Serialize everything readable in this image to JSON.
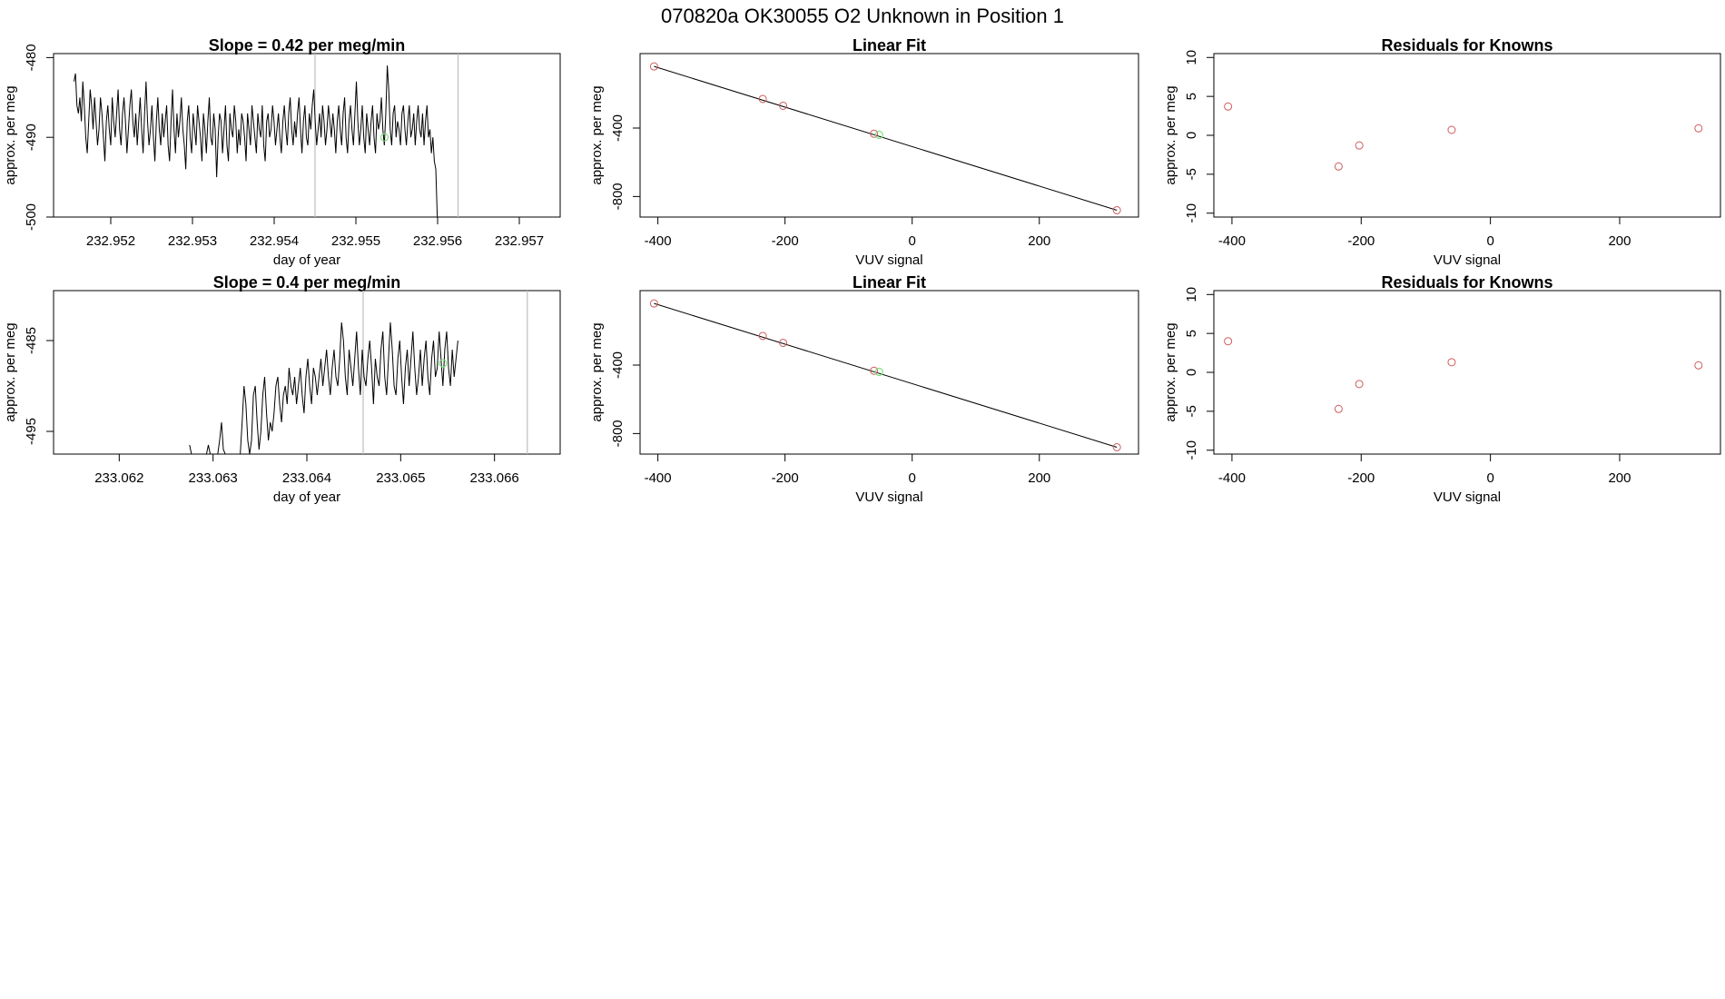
{
  "figure": {
    "title": "070820a      OK30055   O2 Unknown in Position  1"
  },
  "colors": {
    "line": "#000000",
    "known_points": "#cd5c5c",
    "unknown_points": "#7fe07f",
    "frame": "#000000",
    "vline": "#bebebe"
  },
  "chart_data": [
    {
      "id": "ts1",
      "type": "line",
      "title": "Slope =  0.42  per meg/min",
      "xlabel": "day of year",
      "ylabel": "approx. per meg",
      "xlim": [
        232.9513,
        232.9575
      ],
      "ylim": [
        -500,
        -479.5
      ],
      "xticks": [
        232.952,
        232.953,
        232.954,
        232.955,
        232.956,
        232.957
      ],
      "xtick_labels": [
        "232.952",
        "232.953",
        "232.954",
        "232.955",
        "232.956",
        "232.957"
      ],
      "yticks": [
        -500,
        -490,
        -480
      ],
      "ytick_labels": [
        "-500",
        "-490",
        "-480"
      ],
      "vlines": [
        232.9545,
        232.95625
      ],
      "series": [
        {
          "x_start": 232.95155,
          "x_step": 1.8e-05,
          "values": [
            -483,
            -482,
            -486,
            -487,
            -485,
            -488,
            -483,
            -486,
            -490,
            -492,
            -488,
            -484,
            -486,
            -489,
            -485,
            -488,
            -491,
            -489,
            -485,
            -487,
            -490,
            -493,
            -488,
            -486,
            -489,
            -491,
            -485,
            -488,
            -490,
            -487,
            -484,
            -489,
            -491,
            -487,
            -485,
            -488,
            -492,
            -489,
            -486,
            -484,
            -488,
            -490,
            -487,
            -491,
            -488,
            -485,
            -489,
            -492,
            -487,
            -483,
            -488,
            -491,
            -489,
            -486,
            -490,
            -493,
            -488,
            -485,
            -489,
            -491,
            -487,
            -490,
            -488,
            -486,
            -491,
            -493,
            -488,
            -484,
            -489,
            -492,
            -487,
            -490,
            -488,
            -485,
            -489,
            -491,
            -494,
            -488,
            -486,
            -490,
            -492,
            -487,
            -489,
            -491,
            -486,
            -488,
            -490,
            -493,
            -487,
            -489,
            -492,
            -488,
            -485,
            -490,
            -491,
            -487,
            -489,
            -495,
            -490,
            -487,
            -488,
            -492,
            -489,
            -486,
            -491,
            -493,
            -487,
            -489,
            -490,
            -486,
            -488,
            -492,
            -489,
            -491,
            -487,
            -488,
            -490,
            -493,
            -487,
            -489,
            -491,
            -486,
            -488,
            -490,
            -492,
            -487,
            -489,
            -490,
            -486,
            -491,
            -493,
            -488,
            -487,
            -490,
            -489,
            -486,
            -488,
            -491,
            -489,
            -487,
            -490,
            -492,
            -488,
            -486,
            -489,
            -491,
            -487,
            -485,
            -489,
            -491,
            -488,
            -490,
            -487,
            -485,
            -489,
            -492,
            -488,
            -486,
            -490,
            -491,
            -487,
            -489,
            -486,
            -484,
            -488,
            -491,
            -489,
            -487,
            -490,
            -486,
            -488,
            -491,
            -489,
            -486,
            -488,
            -490,
            -487,
            -489,
            -492,
            -488,
            -486,
            -489,
            -491,
            -487,
            -485,
            -490,
            -492,
            -488,
            -486,
            -489,
            -491,
            -487,
            -483,
            -488,
            -491,
            -489,
            -486,
            -490,
            -492,
            -487,
            -489,
            -491,
            -488,
            -486,
            -490,
            -492,
            -487,
            -489,
            -488,
            -485,
            -489,
            -491,
            -487,
            -481,
            -484,
            -489,
            -491,
            -487,
            -486,
            -490,
            -488,
            -489,
            -491,
            -487,
            -486,
            -489,
            -491,
            -488,
            -486,
            -490,
            -489,
            -487,
            -491,
            -488,
            -486,
            -489,
            -490,
            -487,
            -491,
            -488,
            -486,
            -490,
            -489,
            -492,
            -490,
            -493,
            -494,
            -500
          ]
        }
      ],
      "unknown_points": [
        {
          "x": 232.95535,
          "y": -490
        }
      ]
    },
    {
      "id": "fit1",
      "type": "scatter",
      "title": "Linear Fit",
      "xlabel": "VUV signal",
      "ylabel": "approx. per meg",
      "xlim": [
        -428,
        356
      ],
      "ylim": [
        -920,
        35
      ],
      "xticks": [
        -400,
        -200,
        0,
        200
      ],
      "xtick_labels": [
        "-400",
        "-200",
        "0",
        "200"
      ],
      "yticks": [
        -800,
        -400
      ],
      "ytick_labels": [
        "-800",
        "-400"
      ],
      "fit_line": {
        "x": [
          -406,
          322
        ],
        "y": [
          -40,
          -880
        ]
      },
      "known_points": [
        {
          "x": -406,
          "y": -40
        },
        {
          "x": -235,
          "y": -230
        },
        {
          "x": -203,
          "y": -270
        },
        {
          "x": -60,
          "y": -433
        },
        {
          "x": 322,
          "y": -880
        }
      ],
      "unknown_points": [
        {
          "x": -52,
          "y": -440
        }
      ]
    },
    {
      "id": "res1",
      "type": "scatter",
      "title": "Residuals for Knowns",
      "xlabel": "VUV signal",
      "ylabel": "approx. per meg",
      "xlim": [
        -428,
        356
      ],
      "ylim": [
        -10.5,
        10.5
      ],
      "xticks": [
        -400,
        -200,
        0,
        200
      ],
      "xtick_labels": [
        "-400",
        "-200",
        "0",
        "200"
      ],
      "yticks": [
        -10,
        -5,
        0,
        5,
        10
      ],
      "ytick_labels": [
        "-10",
        "-5",
        "0",
        "5",
        "10"
      ],
      "known_points": [
        {
          "x": -406,
          "y": 3.7
        },
        {
          "x": -235,
          "y": -4.0
        },
        {
          "x": -203,
          "y": -1.3
        },
        {
          "x": -60,
          "y": 0.7
        },
        {
          "x": 322,
          "y": 0.9
        }
      ]
    },
    {
      "id": "ts2",
      "type": "line",
      "title": "Slope =  0.4  per meg/min",
      "xlabel": "day of year",
      "ylabel": "approx. per meg",
      "xlim": [
        233.0613,
        233.0667
      ],
      "ylim": [
        -497.5,
        -479.5
      ],
      "xticks": [
        233.062,
        233.063,
        233.064,
        233.065,
        233.066
      ],
      "xtick_labels": [
        "233.062",
        "233.063",
        "233.064",
        "233.065",
        "233.066"
      ],
      "yticks": [
        -495,
        -485
      ],
      "ytick_labels": [
        "-495",
        "-485"
      ],
      "vlines": [
        233.0646,
        233.06635
      ],
      "series": [
        {
          "x_start": 233.06275,
          "x_step": 2e-05,
          "values": [
            -496.5,
            -497.5,
            -497.5,
            -497.5,
            -497.5,
            -497.5,
            -497.5,
            -497.5,
            -497.5,
            -497.5,
            -496.5,
            -497.5,
            -497.5,
            -497.5,
            -497.5,
            -497.5,
            -496,
            -494,
            -497,
            -497.5,
            -497.5,
            -497.5,
            -497.5,
            -497.5,
            -497.5,
            -497.5,
            -497.5,
            -497.5,
            -494,
            -490,
            -492,
            -496,
            -497.5,
            -496,
            -491,
            -490,
            -494,
            -497,
            -495,
            -491,
            -489,
            -493,
            -496,
            -494,
            -495,
            -493,
            -490,
            -489,
            -492,
            -494,
            -491,
            -490,
            -492,
            -488,
            -490,
            -491,
            -489,
            -492,
            -490,
            -488,
            -491,
            -493,
            -489,
            -487,
            -490,
            -492,
            -488,
            -489,
            -491,
            -489,
            -487,
            -490,
            -488,
            -486,
            -489,
            -491,
            -488,
            -486,
            -489,
            -490,
            -487,
            -483,
            -485,
            -489,
            -491,
            -486,
            -488,
            -490,
            -487,
            -484,
            -488,
            -491,
            -486,
            -489,
            -490,
            -487,
            -485,
            -488,
            -492,
            -487,
            -489,
            -490,
            -486,
            -484,
            -489,
            -491,
            -487,
            -483,
            -486,
            -490,
            -491,
            -487,
            -485,
            -489,
            -492,
            -488,
            -486,
            -490,
            -487,
            -484,
            -488,
            -491,
            -489,
            -486,
            -490,
            -487,
            -485,
            -489,
            -491,
            -487,
            -485,
            -489,
            -488,
            -484,
            -487,
            -490,
            -486,
            -484,
            -488,
            -490,
            -486,
            -489,
            -487,
            -485
          ]
        }
      ],
      "unknown_points": [
        {
          "x": 233.06545,
          "y": -487.5
        }
      ]
    },
    {
      "id": "fit2",
      "type": "scatter",
      "title": "Linear Fit",
      "xlabel": "VUV signal",
      "ylabel": "approx. per meg",
      "xlim": [
        -428,
        356
      ],
      "ylim": [
        -920,
        35
      ],
      "xticks": [
        -400,
        -200,
        0,
        200
      ],
      "xtick_labels": [
        "-400",
        "-200",
        "0",
        "200"
      ],
      "yticks": [
        -800,
        -400
      ],
      "ytick_labels": [
        "-800",
        "-400"
      ],
      "fit_line": {
        "x": [
          -406,
          322
        ],
        "y": [
          -40,
          -880
        ]
      },
      "known_points": [
        {
          "x": -406,
          "y": -40
        },
        {
          "x": -235,
          "y": -230
        },
        {
          "x": -203,
          "y": -270
        },
        {
          "x": -60,
          "y": -433
        },
        {
          "x": 322,
          "y": -880
        }
      ],
      "unknown_points": [
        {
          "x": -52,
          "y": -440
        }
      ]
    },
    {
      "id": "res2",
      "type": "scatter",
      "title": "Residuals for Knowns",
      "xlabel": "VUV signal",
      "ylabel": "approx. per meg",
      "xlim": [
        -428,
        356
      ],
      "ylim": [
        -10.5,
        10.5
      ],
      "xticks": [
        -400,
        -200,
        0,
        200
      ],
      "xtick_labels": [
        "-400",
        "-200",
        "0",
        "200"
      ],
      "yticks": [
        -10,
        -5,
        0,
        5,
        10
      ],
      "ytick_labels": [
        "-10",
        "-5",
        "0",
        "5",
        "10"
      ],
      "known_points": [
        {
          "x": -406,
          "y": 4.0
        },
        {
          "x": -235,
          "y": -4.7
        },
        {
          "x": -203,
          "y": -1.5
        },
        {
          "x": -60,
          "y": 1.3
        },
        {
          "x": 322,
          "y": 0.9
        }
      ]
    }
  ]
}
